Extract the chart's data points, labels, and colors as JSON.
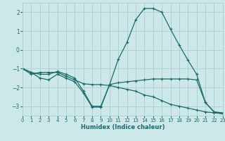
{
  "bg_color": "#cce8e8",
  "grid_color": "#aad0d0",
  "line_color": "#1a6b6b",
  "marker": "+",
  "markersize": 3.5,
  "linewidth": 0.9,
  "xlabel": "Humidex (Indice chaleur)",
  "xlim": [
    0,
    23
  ],
  "ylim": [
    -3.5,
    2.5
  ],
  "yticks": [
    -3,
    -2,
    -1,
    0,
    1,
    2
  ],
  "xticks": [
    0,
    1,
    2,
    3,
    4,
    5,
    6,
    7,
    8,
    9,
    10,
    11,
    12,
    13,
    14,
    15,
    16,
    17,
    18,
    19,
    20,
    21,
    22,
    23
  ],
  "series": [
    [
      0,
      -1.0,
      1,
      -1.3,
      2,
      -1.2,
      3,
      -1.2,
      4,
      -1.2,
      5,
      -1.4,
      6,
      -1.6,
      7,
      -1.8,
      8,
      -1.85,
      9,
      -1.85,
      10,
      -1.9,
      11,
      -2.0,
      12,
      -2.1,
      13,
      -2.2,
      14,
      -2.4,
      15,
      -2.5,
      16,
      -2.7,
      17,
      -2.9,
      18,
      -3.0,
      19,
      -3.1,
      20,
      -3.2,
      21,
      -3.3,
      22,
      -3.35,
      23,
      -3.4
    ],
    [
      0,
      -1.0,
      1,
      -1.2,
      2,
      -1.3,
      3,
      -1.3,
      4,
      -1.15,
      5,
      -1.3,
      6,
      -1.5,
      7,
      -2.2,
      8,
      -3.0,
      9,
      -3.0,
      10,
      -1.85,
      11,
      -1.75,
      12,
      -1.7,
      13,
      -1.65,
      14,
      -1.6,
      15,
      -1.55,
      16,
      -1.55,
      17,
      -1.55,
      18,
      -1.55,
      19,
      -1.55,
      20,
      -1.6,
      21,
      -2.8,
      22,
      -3.3,
      23,
      -3.35
    ],
    [
      0,
      -1.0,
      1,
      -1.2,
      2,
      -1.5,
      3,
      -1.6,
      4,
      -1.3,
      5,
      -1.5,
      6,
      -1.7,
      7,
      -2.3,
      8,
      -3.05,
      9,
      -3.05,
      10,
      -1.85,
      11,
      -0.5,
      12,
      0.4,
      13,
      1.6,
      14,
      2.2,
      15,
      2.2,
      16,
      2.0,
      17,
      1.1,
      18,
      0.25,
      19,
      -0.55,
      20,
      -1.3,
      21,
      -2.8,
      22,
      -3.3,
      23,
      -3.4
    ]
  ]
}
